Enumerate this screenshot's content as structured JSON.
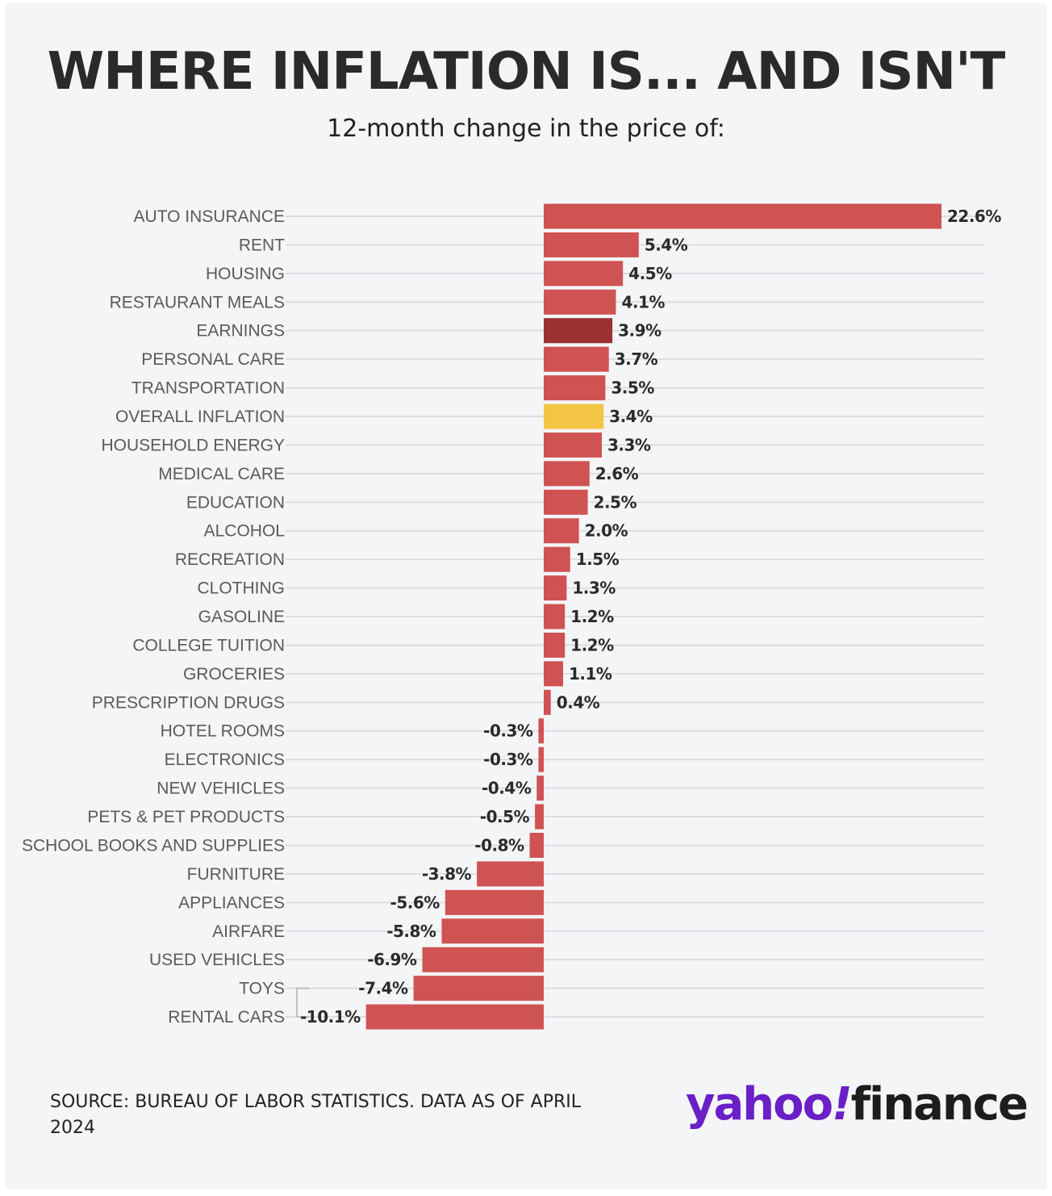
{
  "header": {
    "title": "WHERE INFLATION IS... AND ISN'T",
    "subtitle": "12-month change in the price of:"
  },
  "footer": {
    "source": "SOURCE: BUREAU OF LABOR STATISTICS. DATA AS OF APRIL 2024",
    "logo_part1": "yahoo",
    "logo_part2": "!",
    "logo_part3": "finance"
  },
  "colors": {
    "bar": "#cf5352",
    "highlight_earnings": "#9b3230",
    "highlight_overall": "#f4c444",
    "grid": "#dcdde0",
    "logo_purple": "#6a1fc7"
  },
  "chart_data": {
    "type": "bar",
    "orientation": "horizontal",
    "title": "WHERE INFLATION IS... AND ISN'T",
    "subtitle": "12-month change in the price of:",
    "grid": true,
    "categories": [
      "AUTO INSURANCE",
      "RENT",
      "HOUSING",
      "RESTAURANT MEALS",
      "EARNINGS",
      "PERSONAL CARE",
      "TRANSPORTATION",
      "OVERALL INFLATION",
      "HOUSEHOLD ENERGY",
      "MEDICAL CARE",
      "EDUCATION",
      "ALCOHOL",
      "RECREATION",
      "CLOTHING",
      "GASOLINE",
      "COLLEGE TUITION",
      "GROCERIES",
      "PRESCRIPTION DRUGS",
      "HOTEL ROOMS",
      "ELECTRONICS",
      "NEW VEHICLES",
      "PETS & PET PRODUCTS",
      "SCHOOL BOOKS AND SUPPLIES",
      "FURNITURE",
      "APPLIANCES",
      "AIRFARE",
      "USED VEHICLES",
      "TOYS",
      "RENTAL CARS"
    ],
    "values": [
      22.6,
      5.4,
      4.5,
      4.1,
      3.9,
      3.7,
      3.5,
      3.4,
      3.3,
      2.6,
      2.5,
      2.0,
      1.5,
      1.3,
      1.2,
      1.2,
      1.1,
      0.4,
      -0.3,
      -0.3,
      -0.4,
      -0.5,
      -0.8,
      -3.8,
      -5.6,
      -5.8,
      -6.9,
      -7.4,
      -10.1
    ],
    "value_labels": [
      "22.6%",
      "5.4%",
      "4.5%",
      "4.1%",
      "3.9%",
      "3.7%",
      "3.5%",
      "3.4%",
      "3.3%",
      "2.6%",
      "2.5%",
      "2.0%",
      "1.5%",
      "1.3%",
      "1.2%",
      "1.2%",
      "1.1%",
      "0.4%",
      "-0.3%",
      "-0.3%",
      "-0.4%",
      "-0.5%",
      "-0.8%",
      "-3.8%",
      "-5.6%",
      "-5.8%",
      "-6.9%",
      "-7.4%",
      "-10.1%"
    ],
    "highlights": {
      "EARNINGS": "#9b3230",
      "OVERALL INFLATION": "#f4c444"
    },
    "unit": "%"
  }
}
